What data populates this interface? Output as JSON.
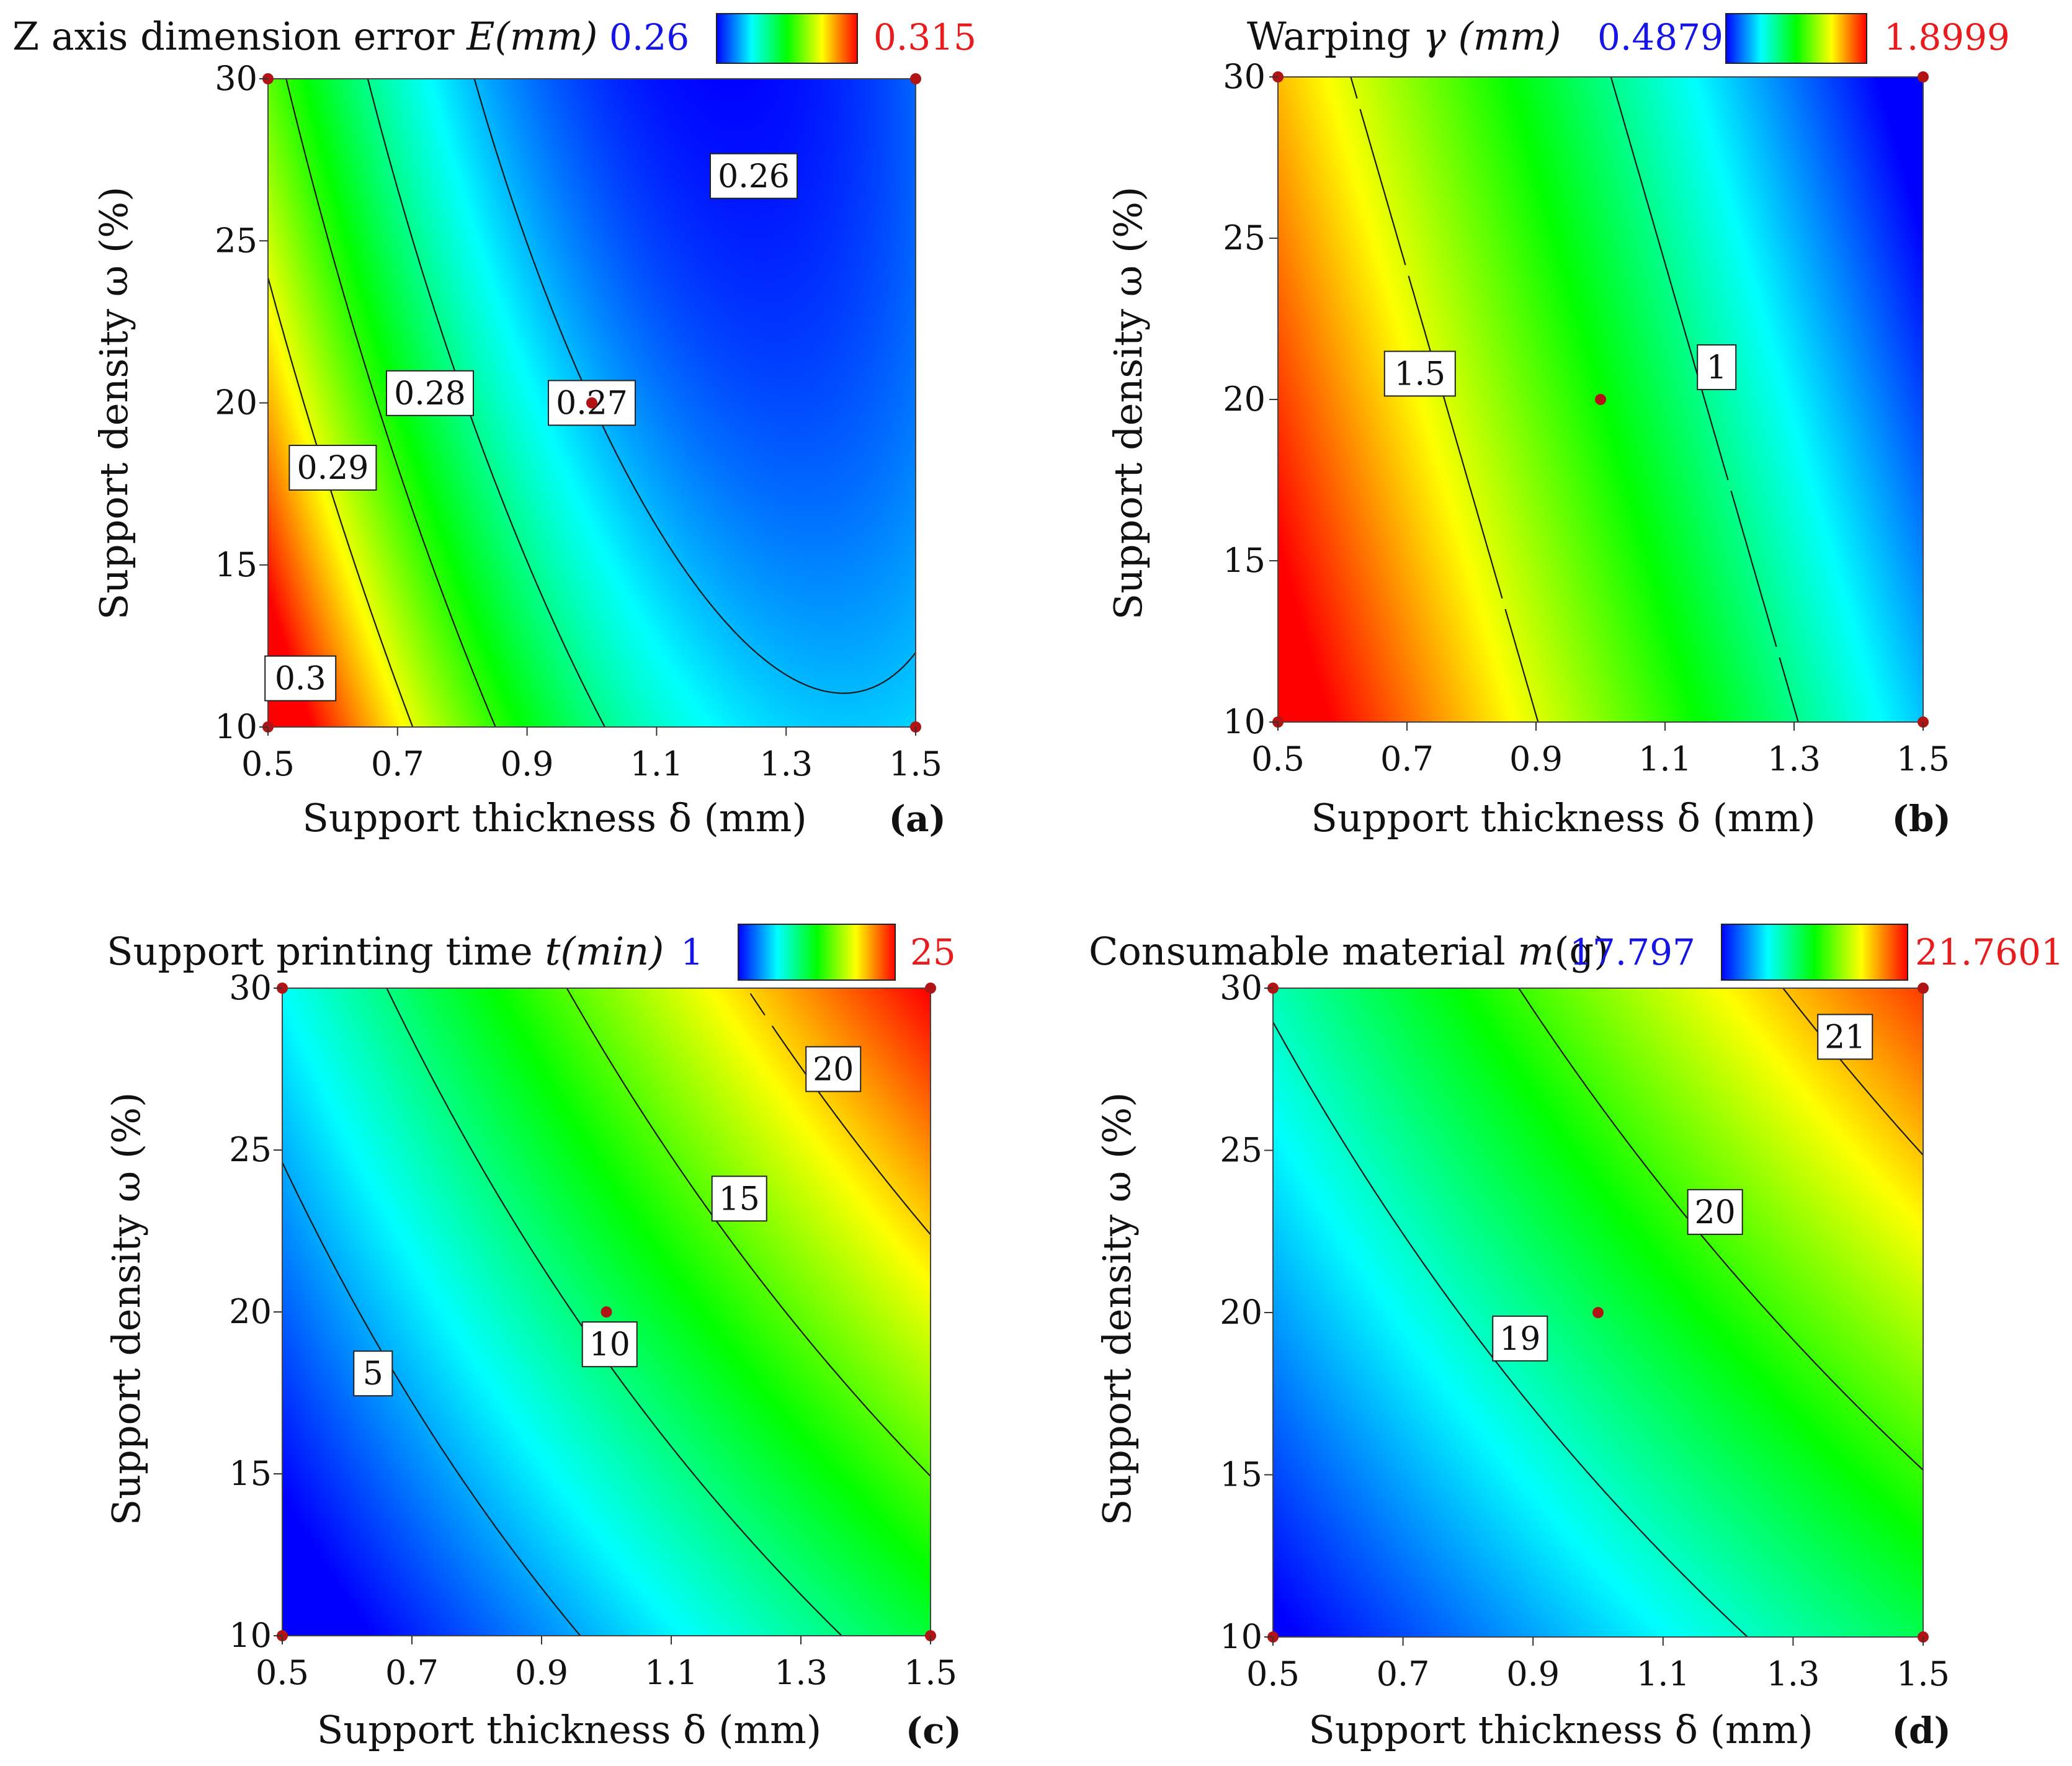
{
  "figure": {
    "description_panels": [
      "a",
      "b",
      "c",
      "d"
    ]
  },
  "colors": {
    "low_label": "#1515e6",
    "high_label": "#e81c1c",
    "point": "#b01414",
    "contour": "#1a1a1a",
    "colormap": [
      "#0000ff",
      "#00ffff",
      "#00ff00",
      "#ffff00",
      "#ff0000"
    ]
  },
  "chart_data": [
    {
      "type": "heatmap",
      "panel_label": "(a)",
      "title_prefix": "Z axis dimension error ",
      "title_var": "E(mm)",
      "title_suffix": "",
      "colorbar": {
        "min_label": "0.26",
        "max_label": "0.315",
        "min": 0.26,
        "max": 0.315
      },
      "xlabel": "Support thickness δ (mm)",
      "ylabel": "Support density ω (%)",
      "xlim": [
        0.5,
        1.5
      ],
      "ylim": [
        10,
        30
      ],
      "xticks": [
        "0.5",
        "0.7",
        "0.9",
        "1.1",
        "1.3",
        "1.5"
      ],
      "yticks": [
        "10",
        "15",
        "20",
        "25",
        "30"
      ],
      "contour_labels": [
        "0.3",
        "0.29",
        "0.28",
        "0.27",
        "0.26"
      ],
      "design_points": [
        [
          0.5,
          10
        ],
        [
          0.5,
          30
        ],
        [
          1.5,
          10
        ],
        [
          1.5,
          30
        ],
        [
          1.0,
          20
        ]
      ]
    },
    {
      "type": "heatmap",
      "panel_label": "(b)",
      "title_prefix": "Warping ",
      "title_var": "γ (mm)",
      "title_suffix": "",
      "colorbar": {
        "min_label": "0.4879",
        "max_label": "1.8999",
        "min": 0.4879,
        "max": 1.8999
      },
      "xlabel": "Support thickness δ (mm)",
      "ylabel": "Support density ω  (%)",
      "xlim": [
        0.5,
        1.5
      ],
      "ylim": [
        10,
        30
      ],
      "xticks": [
        "0.5",
        "0.7",
        "0.9",
        "1.1",
        "1.3",
        "1.5"
      ],
      "yticks": [
        "10",
        "15",
        "20",
        "25",
        "30"
      ],
      "contour_labels": [
        "1.5",
        "1"
      ],
      "design_points": [
        [
          0.5,
          10
        ],
        [
          0.5,
          30
        ],
        [
          1.5,
          10
        ],
        [
          1.5,
          30
        ],
        [
          1.0,
          20
        ]
      ]
    },
    {
      "type": "heatmap",
      "panel_label": "(c)",
      "title_prefix": "Support printing time ",
      "title_var": "t(min)",
      "title_suffix": "",
      "colorbar": {
        "min_label": "1",
        "max_label": "25",
        "min": 1,
        "max": 25
      },
      "xlabel": "Support thickness δ (mm)",
      "ylabel": "Support density ω (%)",
      "xlim": [
        0.5,
        1.5
      ],
      "ylim": [
        10,
        30
      ],
      "xticks": [
        "0.5",
        "0.7",
        "0.9",
        "1.1",
        "1.3",
        "1.5"
      ],
      "yticks": [
        "10",
        "15",
        "20",
        "25",
        "30"
      ],
      "contour_labels": [
        "5",
        "10",
        "15",
        "20"
      ],
      "design_points": [
        [
          0.5,
          10
        ],
        [
          0.5,
          30
        ],
        [
          1.5,
          10
        ],
        [
          1.5,
          30
        ],
        [
          1.0,
          20
        ]
      ]
    },
    {
      "type": "heatmap",
      "panel_label": "(d)",
      "title_prefix": "Consumable material ",
      "title_var": "m",
      "title_suffix": "(g)",
      "colorbar": {
        "min_label": "17.797",
        "max_label": "21.7601",
        "min": 17.797,
        "max": 21.7601
      },
      "xlabel": "Support thickness δ (mm)",
      "ylabel": "Support density ω (%)",
      "xlim": [
        0.5,
        1.5
      ],
      "ylim": [
        10,
        30
      ],
      "xticks": [
        "0.5",
        "0.7",
        "0.9",
        "1.1",
        "1.3",
        "1.5"
      ],
      "yticks": [
        "10",
        "15",
        "20",
        "25",
        "30"
      ],
      "contour_labels": [
        "19",
        "20",
        "21"
      ],
      "design_points": [
        [
          0.5,
          10
        ],
        [
          0.5,
          30
        ],
        [
          1.5,
          10
        ],
        [
          1.5,
          30
        ],
        [
          1.0,
          20
        ]
      ]
    }
  ]
}
